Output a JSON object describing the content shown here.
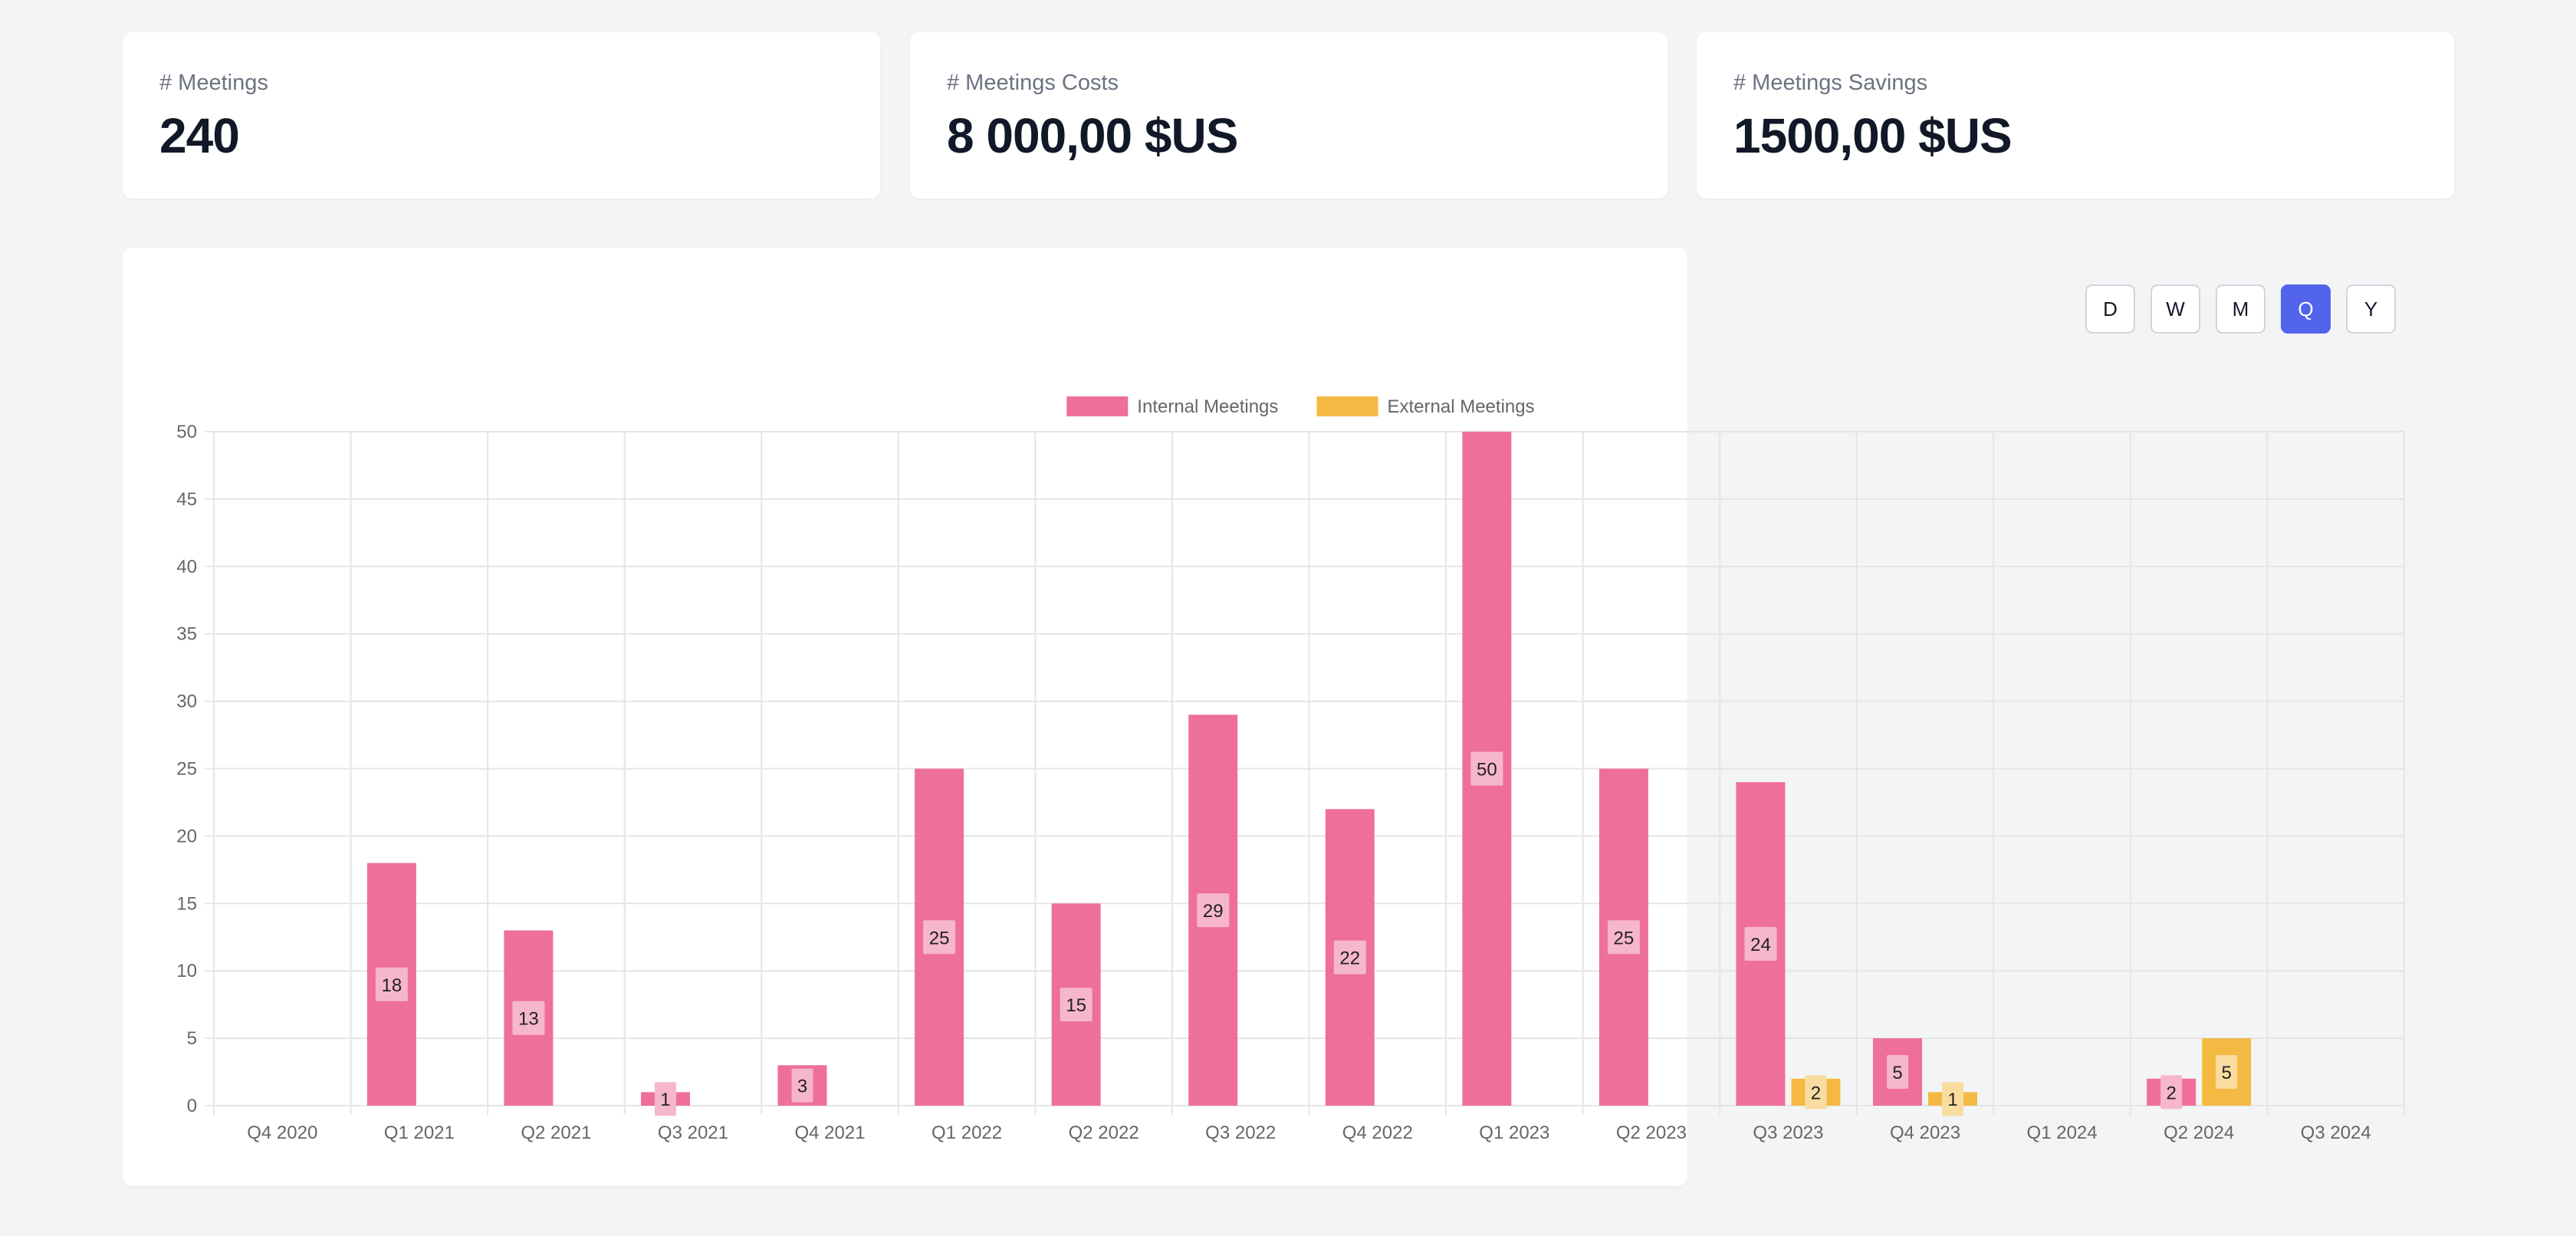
{
  "stats": [
    {
      "label": "# Meetings",
      "value": "240"
    },
    {
      "label": "# Meetings Costs",
      "value": "8 000,00 $US"
    },
    {
      "label": "# Meetings Savings",
      "value": "1500,00 $US"
    }
  ],
  "period_buttons": [
    {
      "label": "D",
      "active": false
    },
    {
      "label": "W",
      "active": false
    },
    {
      "label": "M",
      "active": false
    },
    {
      "label": "Q",
      "active": true
    },
    {
      "label": "Y",
      "active": false
    }
  ],
  "colors": {
    "internal": "#ee6f9b",
    "external": "#f4b942",
    "label_box_internal": "#f6b6cd",
    "label_box_external": "#f9dca0",
    "grid": "#e5e5e5",
    "active_button": "#5164eb"
  },
  "chart_data": {
    "type": "bar",
    "title": "",
    "xlabel": "",
    "ylabel": "",
    "ylim": [
      0,
      50
    ],
    "yticks": [
      0,
      5,
      10,
      15,
      20,
      25,
      30,
      35,
      40,
      45,
      50
    ],
    "legend_position": "top-center",
    "grid": true,
    "categories": [
      "Q4 2020",
      "Q1 2021",
      "Q2 2021",
      "Q3 2021",
      "Q4 2021",
      "Q1 2022",
      "Q2 2022",
      "Q3 2022",
      "Q4 2022",
      "Q1 2023",
      "Q2 2023",
      "Q3 2023",
      "Q4 2023",
      "Q1 2024",
      "Q2 2024",
      "Q3 2024"
    ],
    "series": [
      {
        "name": "Internal Meetings",
        "values": [
          0,
          18,
          13,
          1,
          3,
          25,
          15,
          29,
          22,
          50,
          25,
          24,
          5,
          0,
          2,
          0
        ]
      },
      {
        "name": "External Meetings",
        "values": [
          0,
          0,
          0,
          0,
          0,
          0,
          0,
          0,
          0,
          0,
          0,
          2,
          1,
          0,
          5,
          0
        ]
      }
    ]
  }
}
